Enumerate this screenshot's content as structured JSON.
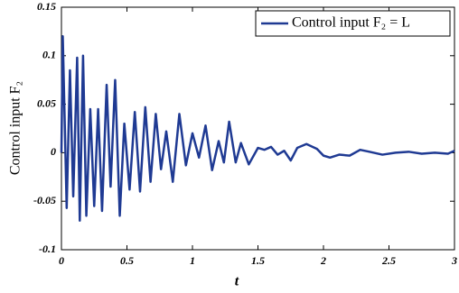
{
  "chart_data": {
    "type": "line",
    "x_label": "t",
    "y_label": "Control input F₂",
    "x": [
      0,
      0.01,
      0.04,
      0.065,
      0.09,
      0.12,
      0.14,
      0.165,
      0.19,
      0.22,
      0.25,
      0.28,
      0.31,
      0.345,
      0.375,
      0.41,
      0.445,
      0.48,
      0.52,
      0.56,
      0.6,
      0.64,
      0.68,
      0.72,
      0.76,
      0.8,
      0.85,
      0.9,
      0.95,
      1.0,
      1.05,
      1.1,
      1.15,
      1.2,
      1.24,
      1.28,
      1.33,
      1.37,
      1.43,
      1.5,
      1.55,
      1.6,
      1.65,
      1.7,
      1.75,
      1.8,
      1.87,
      1.95,
      2.0,
      2.05,
      2.12,
      2.2,
      2.28,
      2.35,
      2.45,
      2.55,
      2.65,
      2.75,
      2.85,
      2.95,
      3.0
    ],
    "series": [
      {
        "name": "Control input F₂ = L",
        "color": "#1f3a93",
        "values": [
          0,
          0.12,
          -0.057,
          0.085,
          -0.045,
          0.098,
          -0.07,
          0.1,
          -0.065,
          0.045,
          -0.055,
          0.045,
          -0.06,
          0.07,
          -0.035,
          0.075,
          -0.065,
          0.03,
          -0.038,
          0.042,
          -0.04,
          0.047,
          -0.03,
          0.04,
          -0.017,
          0.022,
          -0.03,
          0.04,
          -0.013,
          0.02,
          -0.005,
          0.028,
          -0.018,
          0.012,
          -0.01,
          0.032,
          -0.01,
          0.01,
          -0.012,
          0.005,
          0.003,
          0.006,
          -0.002,
          0.002,
          -0.008,
          0.005,
          0.009,
          0.004,
          -0.003,
          -0.005,
          -0.002,
          -0.003,
          0.003,
          0.001,
          -0.002,
          0,
          0.001,
          -0.001,
          0,
          -0.001,
          0.002
        ]
      }
    ],
    "xlim": [
      0,
      3
    ],
    "xticks": [
      0,
      0.5,
      1,
      1.5,
      2,
      2.5,
      3
    ],
    "ylim": [
      -0.1,
      0.15
    ],
    "yticks": [
      -0.1,
      -0.05,
      0,
      0.05,
      0.1,
      0.15
    ],
    "grid": false,
    "legend": "upper right"
  }
}
